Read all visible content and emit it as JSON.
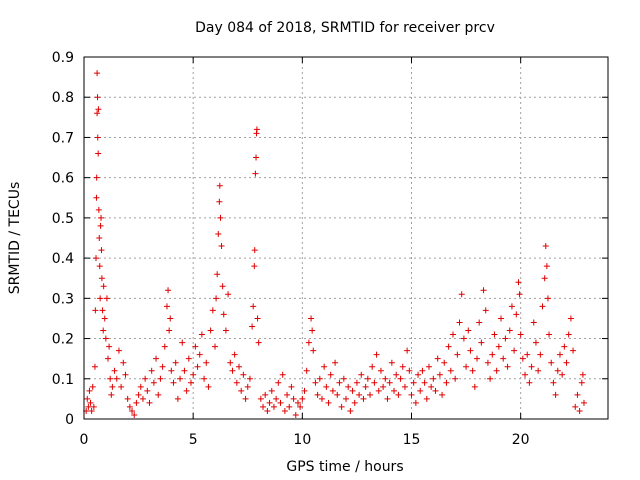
{
  "chart_data": {
    "type": "scatter",
    "title": "Day 084 of 2018, SRMTID for receiver prcv",
    "xlabel": "GPS time / hours",
    "ylabel": "SRMTID / TECUs",
    "xlim": [
      0,
      24
    ],
    "ylim": [
      0,
      0.9
    ],
    "x_ticks": [
      0,
      5,
      10,
      15,
      20
    ],
    "y_ticks": [
      0,
      0.1,
      0.2,
      0.3,
      0.4,
      0.5,
      0.6,
      0.7,
      0.8,
      0.9
    ],
    "x_tick_labels": [
      "0",
      "5",
      "10",
      "15",
      "20"
    ],
    "y_tick_labels": [
      "0",
      "0.1",
      "0.2",
      "0.3",
      "0.4",
      "0.5",
      "0.6",
      "0.7",
      "0.8",
      "0.9"
    ],
    "grid": true,
    "marker": "plus",
    "color": "#e00000",
    "series": [
      {
        "name": "SRMTID",
        "points": [
          [
            0.1,
            0.02
          ],
          [
            0.15,
            0.05
          ],
          [
            0.2,
            0.03
          ],
          [
            0.25,
            0.07
          ],
          [
            0.3,
            0.04
          ],
          [
            0.35,
            0.02
          ],
          [
            0.4,
            0.08
          ],
          [
            0.45,
            0.03
          ],
          [
            0.5,
            0.13
          ],
          [
            0.52,
            0.27
          ],
          [
            0.55,
            0.4
          ],
          [
            0.57,
            0.55
          ],
          [
            0.58,
            0.6
          ],
          [
            0.6,
            0.76
          ],
          [
            0.6,
            0.86
          ],
          [
            0.62,
            0.8
          ],
          [
            0.63,
            0.7
          ],
          [
            0.65,
            0.66
          ],
          [
            0.66,
            0.77
          ],
          [
            0.68,
            0.52
          ],
          [
            0.7,
            0.45
          ],
          [
            0.72,
            0.38
          ],
          [
            0.74,
            0.3
          ],
          [
            0.76,
            0.48
          ],
          [
            0.78,
            0.5
          ],
          [
            0.8,
            0.42
          ],
          [
            0.82,
            0.35
          ],
          [
            0.85,
            0.27
          ],
          [
            0.88,
            0.22
          ],
          [
            0.9,
            0.33
          ],
          [
            0.95,
            0.25
          ],
          [
            1.0,
            0.2
          ],
          [
            1.05,
            0.3
          ],
          [
            1.1,
            0.15
          ],
          [
            1.15,
            0.18
          ],
          [
            1.2,
            0.1
          ],
          [
            1.25,
            0.06
          ],
          [
            1.3,
            0.08
          ],
          [
            1.4,
            0.12
          ],
          [
            1.5,
            0.1
          ],
          [
            1.6,
            0.17
          ],
          [
            1.7,
            0.08
          ],
          [
            1.8,
            0.14
          ],
          [
            1.9,
            0.11
          ],
          [
            2.0,
            0.05
          ],
          [
            2.1,
            0.03
          ],
          [
            2.2,
            0.02
          ],
          [
            2.3,
            0.01
          ],
          [
            2.4,
            0.04
          ],
          [
            2.5,
            0.06
          ],
          [
            2.6,
            0.08
          ],
          [
            2.7,
            0.05
          ],
          [
            2.8,
            0.1
          ],
          [
            2.9,
            0.07
          ],
          [
            3.0,
            0.04
          ],
          [
            3.1,
            0.12
          ],
          [
            3.2,
            0.09
          ],
          [
            3.3,
            0.15
          ],
          [
            3.4,
            0.06
          ],
          [
            3.5,
            0.1
          ],
          [
            3.6,
            0.13
          ],
          [
            3.7,
            0.18
          ],
          [
            3.8,
            0.28
          ],
          [
            3.85,
            0.32
          ],
          [
            3.9,
            0.22
          ],
          [
            3.95,
            0.25
          ],
          [
            4.0,
            0.12
          ],
          [
            4.1,
            0.09
          ],
          [
            4.2,
            0.14
          ],
          [
            4.3,
            0.05
          ],
          [
            4.4,
            0.1
          ],
          [
            4.5,
            0.19
          ],
          [
            4.6,
            0.12
          ],
          [
            4.7,
            0.07
          ],
          [
            4.8,
            0.15
          ],
          [
            4.9,
            0.09
          ],
          [
            5.0,
            0.11
          ],
          [
            5.1,
            0.18
          ],
          [
            5.2,
            0.13
          ],
          [
            5.3,
            0.16
          ],
          [
            5.4,
            0.21
          ],
          [
            5.5,
            0.1
          ],
          [
            5.6,
            0.14
          ],
          [
            5.7,
            0.08
          ],
          [
            5.8,
            0.22
          ],
          [
            5.9,
            0.27
          ],
          [
            6.0,
            0.18
          ],
          [
            6.05,
            0.3
          ],
          [
            6.1,
            0.36
          ],
          [
            6.15,
            0.46
          ],
          [
            6.2,
            0.54
          ],
          [
            6.22,
            0.58
          ],
          [
            6.25,
            0.5
          ],
          [
            6.3,
            0.43
          ],
          [
            6.35,
            0.33
          ],
          [
            6.4,
            0.26
          ],
          [
            6.5,
            0.22
          ],
          [
            6.6,
            0.31
          ],
          [
            6.7,
            0.14
          ],
          [
            6.8,
            0.12
          ],
          [
            6.9,
            0.16
          ],
          [
            7.0,
            0.09
          ],
          [
            7.1,
            0.13
          ],
          [
            7.2,
            0.07
          ],
          [
            7.3,
            0.11
          ],
          [
            7.4,
            0.05
          ],
          [
            7.5,
            0.08
          ],
          [
            7.6,
            0.1
          ],
          [
            7.7,
            0.23
          ],
          [
            7.75,
            0.28
          ],
          [
            7.8,
            0.38
          ],
          [
            7.82,
            0.42
          ],
          [
            7.85,
            0.61
          ],
          [
            7.88,
            0.65
          ],
          [
            7.9,
            0.71
          ],
          [
            7.92,
            0.72
          ],
          [
            7.95,
            0.25
          ],
          [
            8.0,
            0.19
          ],
          [
            8.1,
            0.05
          ],
          [
            8.2,
            0.03
          ],
          [
            8.3,
            0.06
          ],
          [
            8.4,
            0.02
          ],
          [
            8.5,
            0.04
          ],
          [
            8.6,
            0.07
          ],
          [
            8.7,
            0.03
          ],
          [
            8.8,
            0.05
          ],
          [
            8.9,
            0.09
          ],
          [
            9.0,
            0.04
          ],
          [
            9.1,
            0.11
          ],
          [
            9.2,
            0.02
          ],
          [
            9.3,
            0.06
          ],
          [
            9.4,
            0.03
          ],
          [
            9.5,
            0.08
          ],
          [
            9.6,
            0.05
          ],
          [
            9.7,
            0.01
          ],
          [
            9.8,
            0.04
          ],
          [
            9.9,
            0.03
          ],
          [
            10.0,
            0.05
          ],
          [
            10.1,
            0.07
          ],
          [
            10.2,
            0.12
          ],
          [
            10.3,
            0.19
          ],
          [
            10.4,
            0.25
          ],
          [
            10.45,
            0.22
          ],
          [
            10.5,
            0.17
          ],
          [
            10.6,
            0.09
          ],
          [
            10.7,
            0.06
          ],
          [
            10.8,
            0.1
          ],
          [
            10.9,
            0.05
          ],
          [
            11.0,
            0.13
          ],
          [
            11.1,
            0.08
          ],
          [
            11.2,
            0.04
          ],
          [
            11.3,
            0.11
          ],
          [
            11.4,
            0.07
          ],
          [
            11.5,
            0.14
          ],
          [
            11.6,
            0.06
          ],
          [
            11.7,
            0.09
          ],
          [
            11.8,
            0.03
          ],
          [
            11.9,
            0.1
          ],
          [
            12.0,
            0.05
          ],
          [
            12.1,
            0.08
          ],
          [
            12.2,
            0.02
          ],
          [
            12.3,
            0.07
          ],
          [
            12.4,
            0.04
          ],
          [
            12.5,
            0.09
          ],
          [
            12.6,
            0.06
          ],
          [
            12.7,
            0.11
          ],
          [
            12.8,
            0.05
          ],
          [
            12.9,
            0.08
          ],
          [
            13.0,
            0.1
          ],
          [
            13.1,
            0.06
          ],
          [
            13.2,
            0.13
          ],
          [
            13.3,
            0.09
          ],
          [
            13.4,
            0.16
          ],
          [
            13.5,
            0.07
          ],
          [
            13.6,
            0.12
          ],
          [
            13.7,
            0.08
          ],
          [
            13.8,
            0.1
          ],
          [
            13.9,
            0.05
          ],
          [
            14.0,
            0.09
          ],
          [
            14.1,
            0.14
          ],
          [
            14.2,
            0.07
          ],
          [
            14.3,
            0.11
          ],
          [
            14.4,
            0.06
          ],
          [
            14.5,
            0.1
          ],
          [
            14.6,
            0.13
          ],
          [
            14.7,
            0.08
          ],
          [
            14.8,
            0.17
          ],
          [
            14.9,
            0.12
          ],
          [
            15.0,
            0.06
          ],
          [
            15.1,
            0.09
          ],
          [
            15.2,
            0.04
          ],
          [
            15.3,
            0.11
          ],
          [
            15.4,
            0.07
          ],
          [
            15.5,
            0.12
          ],
          [
            15.6,
            0.09
          ],
          [
            15.7,
            0.05
          ],
          [
            15.8,
            0.13
          ],
          [
            15.9,
            0.08
          ],
          [
            16.0,
            0.1
          ],
          [
            16.1,
            0.07
          ],
          [
            16.2,
            0.15
          ],
          [
            16.3,
            0.11
          ],
          [
            16.4,
            0.06
          ],
          [
            16.5,
            0.14
          ],
          [
            16.6,
            0.09
          ],
          [
            16.7,
            0.18
          ],
          [
            16.8,
            0.12
          ],
          [
            16.9,
            0.21
          ],
          [
            17.0,
            0.1
          ],
          [
            17.1,
            0.16
          ],
          [
            17.2,
            0.24
          ],
          [
            17.3,
            0.31
          ],
          [
            17.4,
            0.2
          ],
          [
            17.5,
            0.13
          ],
          [
            17.6,
            0.22
          ],
          [
            17.7,
            0.17
          ],
          [
            17.8,
            0.12
          ],
          [
            17.9,
            0.08
          ],
          [
            18.0,
            0.15
          ],
          [
            18.1,
            0.24
          ],
          [
            18.2,
            0.19
          ],
          [
            18.3,
            0.32
          ],
          [
            18.4,
            0.27
          ],
          [
            18.5,
            0.14
          ],
          [
            18.6,
            0.1
          ],
          [
            18.7,
            0.16
          ],
          [
            18.8,
            0.21
          ],
          [
            18.9,
            0.12
          ],
          [
            19.0,
            0.18
          ],
          [
            19.1,
            0.25
          ],
          [
            19.2,
            0.15
          ],
          [
            19.3,
            0.2
          ],
          [
            19.4,
            0.13
          ],
          [
            19.5,
            0.22
          ],
          [
            19.6,
            0.28
          ],
          [
            19.7,
            0.17
          ],
          [
            19.8,
            0.26
          ],
          [
            19.9,
            0.34
          ],
          [
            19.95,
            0.31
          ],
          [
            20.0,
            0.21
          ],
          [
            20.1,
            0.15
          ],
          [
            20.2,
            0.11
          ],
          [
            20.3,
            0.16
          ],
          [
            20.4,
            0.09
          ],
          [
            20.5,
            0.13
          ],
          [
            20.6,
            0.24
          ],
          [
            20.7,
            0.19
          ],
          [
            20.8,
            0.12
          ],
          [
            20.9,
            0.16
          ],
          [
            21.0,
            0.28
          ],
          [
            21.1,
            0.35
          ],
          [
            21.15,
            0.43
          ],
          [
            21.2,
            0.38
          ],
          [
            21.25,
            0.3
          ],
          [
            21.3,
            0.21
          ],
          [
            21.4,
            0.14
          ],
          [
            21.5,
            0.09
          ],
          [
            21.6,
            0.06
          ],
          [
            21.7,
            0.12
          ],
          [
            21.8,
            0.16
          ],
          [
            21.9,
            0.11
          ],
          [
            22.0,
            0.18
          ],
          [
            22.1,
            0.14
          ],
          [
            22.2,
            0.21
          ],
          [
            22.3,
            0.25
          ],
          [
            22.4,
            0.17
          ],
          [
            22.5,
            0.03
          ],
          [
            22.6,
            0.06
          ],
          [
            22.7,
            0.02
          ],
          [
            22.8,
            0.09
          ],
          [
            22.85,
            0.11
          ],
          [
            22.9,
            0.04
          ]
        ]
      }
    ]
  }
}
